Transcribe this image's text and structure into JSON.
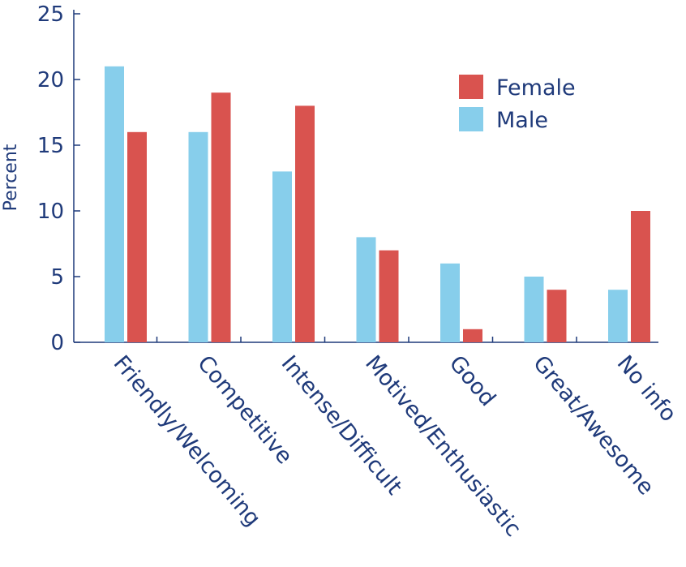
{
  "chart_data": {
    "type": "bar",
    "categories": [
      "Friendly/Welcoming",
      "Competitive",
      "Intense/Difficult",
      "Motived/Enthusiastic",
      "Good",
      "Great/Awesome",
      "No info"
    ],
    "series": [
      {
        "name": "Male",
        "values": [
          21,
          16,
          13,
          8,
          6,
          5,
          4
        ],
        "color": "#87ceeb"
      },
      {
        "name": "Female",
        "values": [
          16,
          19,
          18,
          7,
          1,
          4,
          10
        ],
        "color": "#d9534f"
      }
    ],
    "legend_order": [
      "Female",
      "Male"
    ],
    "ylabel": "Percent",
    "ylim": [
      0,
      25
    ],
    "yticks": [
      "0",
      "5",
      "10",
      "15",
      "20",
      "25"
    ],
    "grid": false,
    "legend_position": "top-right",
    "axis_color": "#1f3a7a"
  }
}
